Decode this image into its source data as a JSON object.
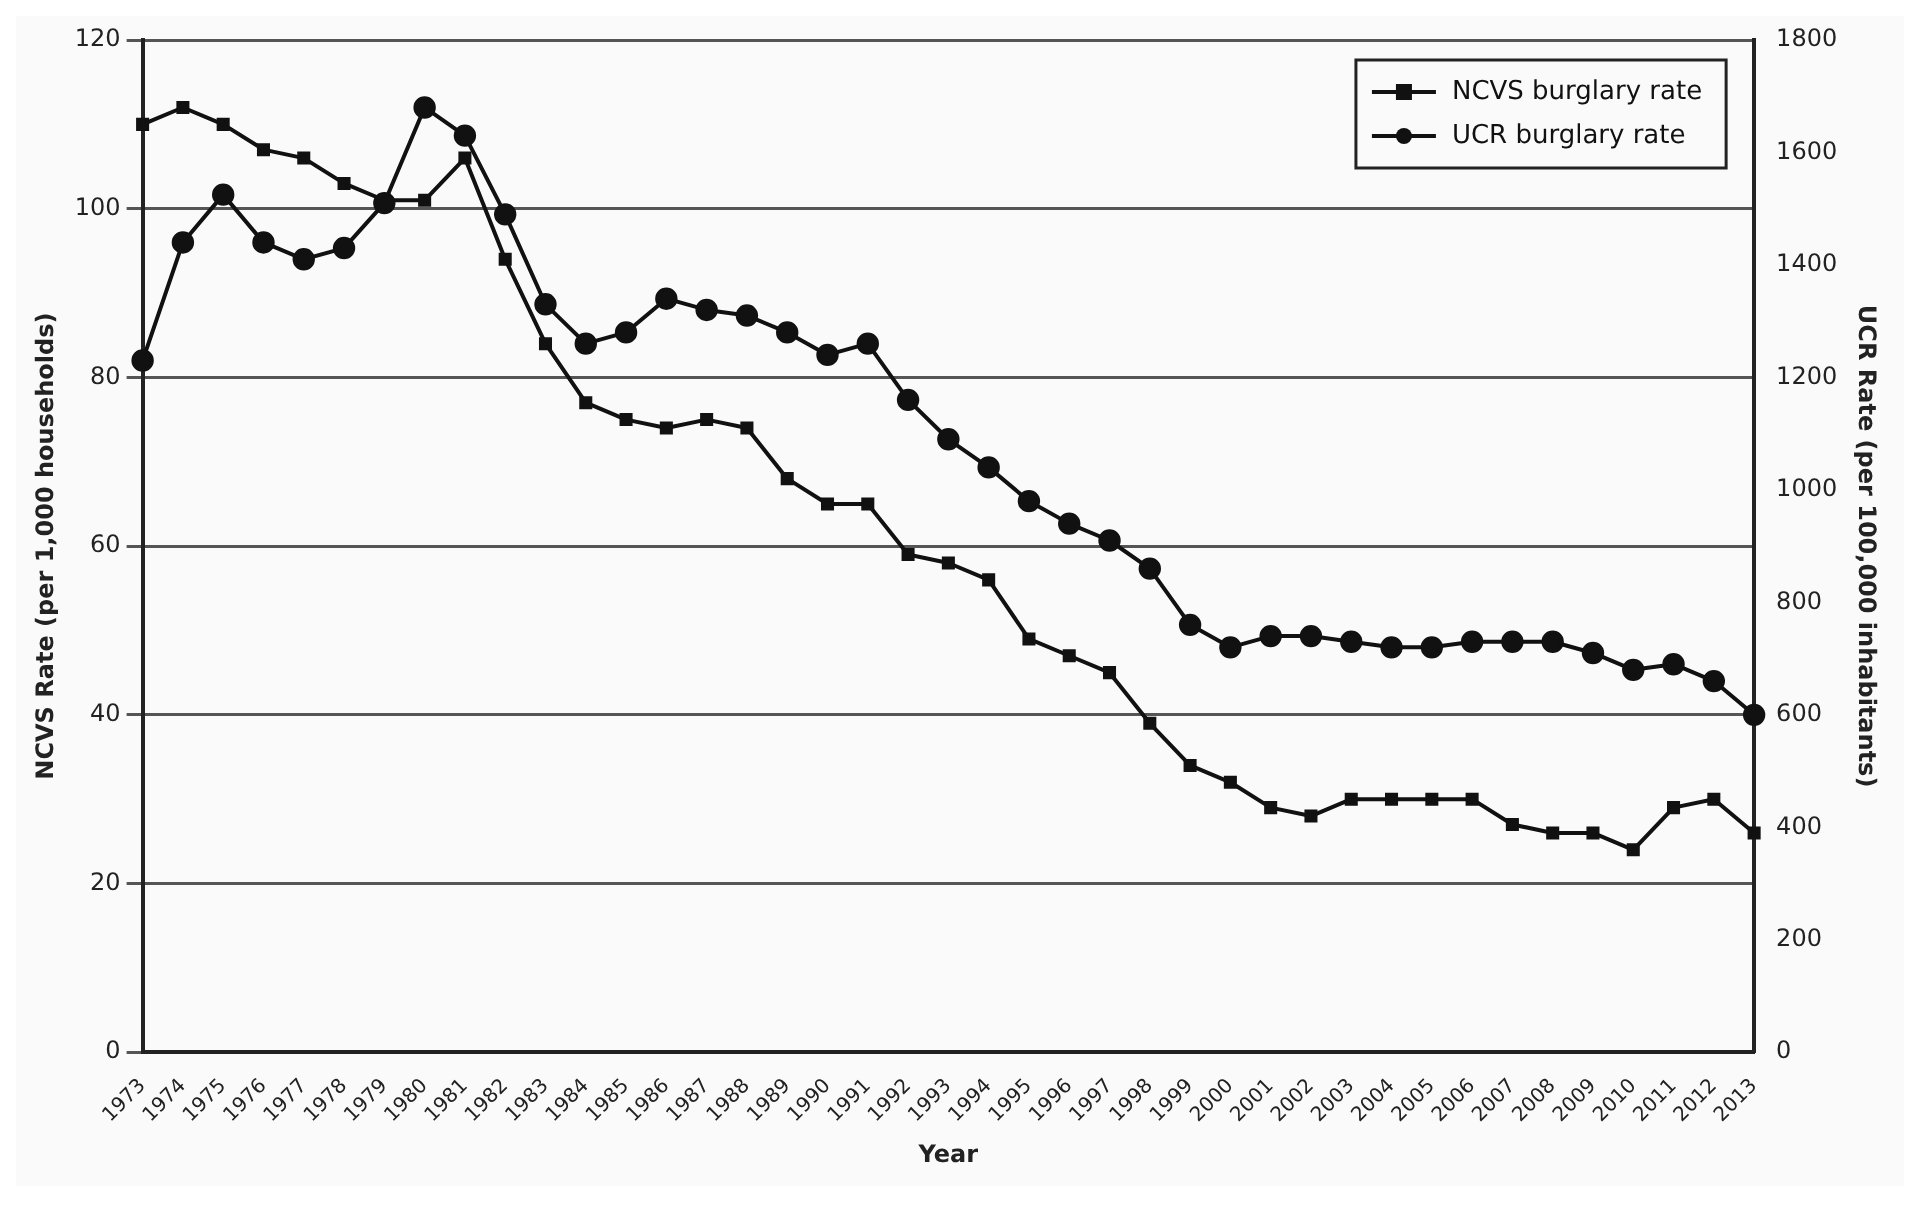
{
  "chart_data": {
    "type": "line",
    "xlabel": "Year",
    "ylabel": "NCVS Rate (per 1,000 households)",
    "y2label": "UCR Rate (per 100,000 inhabitants)",
    "categories": [
      "1973",
      "1974",
      "1975",
      "1976",
      "1977",
      "1978",
      "1979",
      "1980",
      "1981",
      "1982",
      "1983",
      "1984",
      "1985",
      "1986",
      "1987",
      "1988",
      "1989",
      "1990",
      "1991",
      "1992",
      "1993",
      "1994",
      "1995",
      "1996",
      "1997",
      "1998",
      "1999",
      "2000",
      "2001",
      "2002",
      "2003",
      "2004",
      "2005",
      "2006",
      "2007",
      "2008",
      "2009",
      "2010",
      "2011",
      "2012",
      "2013"
    ],
    "series": [
      {
        "name": "NCVS burglary rate",
        "color": "#111111",
        "marker": "square",
        "values": [
          110,
          112,
          110,
          107,
          106,
          103,
          101,
          101,
          106,
          94,
          84,
          77,
          75,
          74,
          75,
          74,
          68,
          65,
          65,
          59,
          58,
          56,
          49,
          47,
          45,
          39,
          34,
          32,
          29,
          28,
          30,
          30,
          30,
          30,
          27,
          26,
          26,
          24,
          29,
          30,
          26
        ]
      },
      {
        "name": "UCR burglary rate",
        "color": "#111111",
        "marker": "circle",
        "axis": "y2",
        "values": [
          1230,
          1440,
          1525,
          1440,
          1410,
          1430,
          1510,
          1680,
          1630,
          1490,
          1330,
          1260,
          1280,
          1340,
          1320,
          1310,
          1280,
          1240,
          1260,
          1160,
          1090,
          1040,
          980,
          940,
          910,
          860,
          760,
          720,
          740,
          740,
          730,
          720,
          720,
          730,
          730,
          730,
          710,
          680,
          690,
          660,
          600
        ]
      }
    ],
    "ylim": [
      0,
      120
    ],
    "yticks": [
      0,
      20,
      40,
      60,
      80,
      100,
      120
    ],
    "y2lim": [
      0,
      1800
    ],
    "y2ticks": [
      0,
      200,
      400,
      600,
      800,
      1000,
      1200,
      1400,
      1600,
      1800
    ],
    "grid": "y",
    "legend": "top right",
    "line_style": "solid"
  }
}
